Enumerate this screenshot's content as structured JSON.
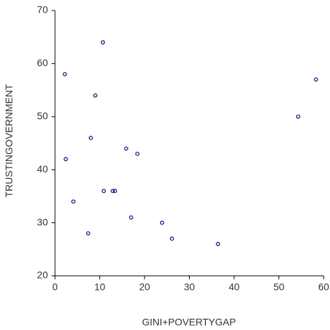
{
  "chart_data": {
    "type": "scatter",
    "x_label": "GINI+POVERTYGAP",
    "y_label": "TRUSTINGOVERNMENT",
    "x": [
      10.7,
      2.2,
      9.0,
      58.3,
      54.3,
      8.0,
      15.9,
      18.4,
      2.4,
      10.9,
      12.9,
      13.4,
      4.1,
      17.0,
      23.9,
      7.4,
      26.1,
      36.4
    ],
    "values": [
      64,
      58,
      54,
      57,
      50,
      46,
      44,
      43,
      42,
      36,
      36,
      36,
      34,
      31,
      30,
      28,
      27,
      26
    ],
    "color": "#1a1a8c",
    "xlim": [
      0,
      60
    ],
    "xticks": [
      0,
      10,
      20,
      30,
      40,
      50,
      60
    ],
    "ylim": [
      20,
      70
    ],
    "yticks": [
      20,
      30,
      40,
      50,
      60,
      70
    ]
  }
}
